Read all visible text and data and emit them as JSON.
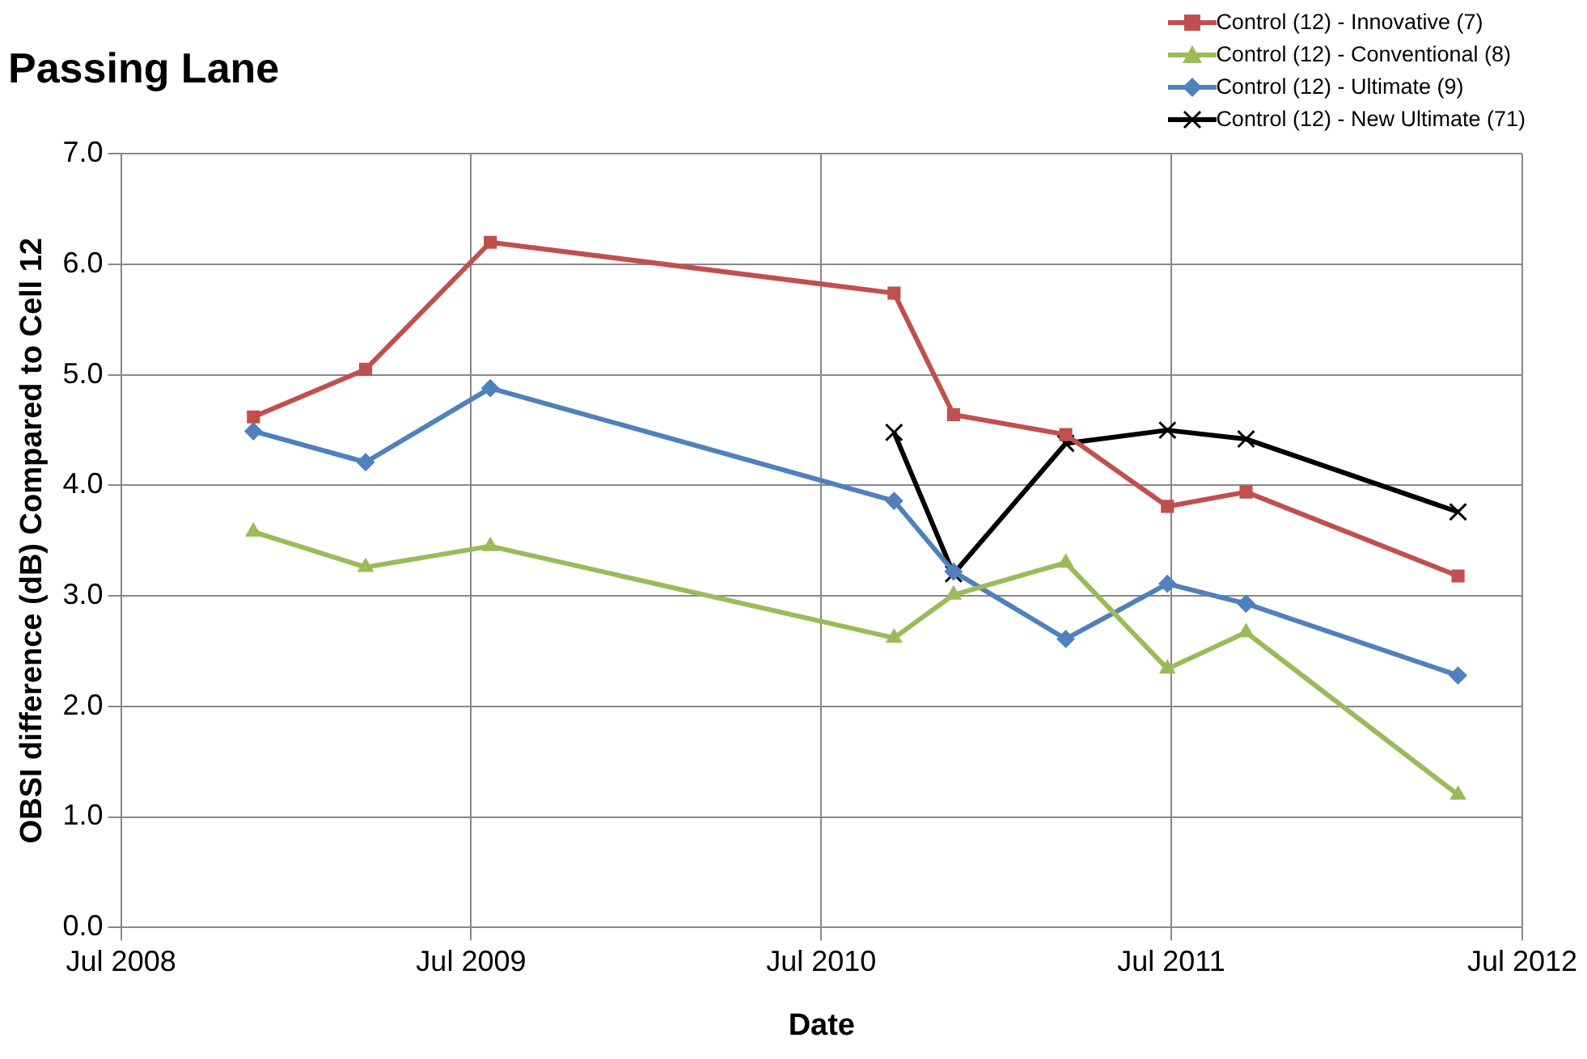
{
  "chart_data": {
    "type": "line",
    "title": "Passing Lane",
    "xlabel": "Date",
    "ylabel": "OBSI difference (dB) Compared to Cell 12",
    "x": [
      "2008-11-16",
      "2009-03-13",
      "2009-07-21",
      "2010-09-15",
      "2010-11-16",
      "2011-03-13",
      "2011-06-27",
      "2011-09-17",
      "2012-04-25"
    ],
    "series": [
      {
        "name": "Control (12) - Innovative (7)",
        "color": "#c0504d",
        "marker": "square",
        "values": [
          4.62,
          5.05,
          6.2,
          5.74,
          4.64,
          4.46,
          3.81,
          3.94,
          3.18
        ]
      },
      {
        "name": "Control (12) - Conventional (8)",
        "color": "#9bbb59",
        "marker": "triangle",
        "values": [
          3.58,
          3.26,
          3.45,
          2.62,
          3.01,
          3.3,
          2.34,
          2.67,
          1.2
        ]
      },
      {
        "name": "Control (12) - Ultimate (9)",
        "color": "#4f81bd",
        "marker": "diamond",
        "values": [
          4.49,
          4.21,
          4.88,
          3.86,
          3.22,
          2.61,
          3.11,
          2.93,
          2.28
        ]
      },
      {
        "name": "Control (12) - New Ultimate (71)",
        "color": "#000000",
        "marker": "cross",
        "x": [
          "2010-09-15",
          "2010-11-16",
          "2011-03-13",
          "2011-06-27",
          "2011-09-17",
          "2012-04-25"
        ],
        "values": [
          4.48,
          3.2,
          4.38,
          4.5,
          4.42,
          3.76
        ]
      }
    ],
    "xlim": [
      "2008-07-01",
      "2012-07-01"
    ],
    "xticks": [
      {
        "value": "2008-07-01",
        "label": "Jul 2008"
      },
      {
        "value": "2009-07-01",
        "label": "Jul 2009"
      },
      {
        "value": "2010-07-01",
        "label": "Jul 2010"
      },
      {
        "value": "2011-07-01",
        "label": "Jul 2011"
      },
      {
        "value": "2012-07-01",
        "label": "Jul 2012"
      }
    ],
    "ylim": [
      0,
      7
    ],
    "yticks": [
      {
        "value": 0,
        "label": "0.0"
      },
      {
        "value": 1,
        "label": "1.0"
      },
      {
        "value": 2,
        "label": "2.0"
      },
      {
        "value": 3,
        "label": "3.0"
      },
      {
        "value": 4,
        "label": "4.0"
      },
      {
        "value": 5,
        "label": "5.0"
      },
      {
        "value": 6,
        "label": "6.0"
      },
      {
        "value": 7,
        "label": "7.0"
      }
    ],
    "grid": true,
    "legend": "top right",
    "line_style": "solid"
  }
}
